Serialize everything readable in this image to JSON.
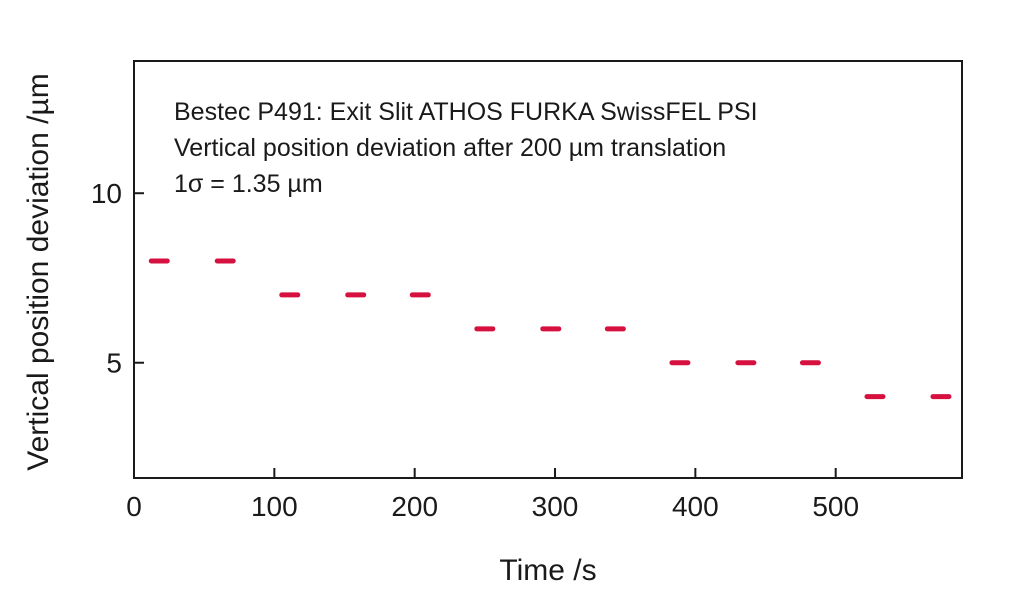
{
  "chart_data": {
    "type": "scatter",
    "title": "",
    "xlabel": "Time /s",
    "ylabel": "Vertical position deviation /µm",
    "xlim": [
      0,
      590
    ],
    "ylim": [
      1.6,
      13.9
    ],
    "xticks": [
      0,
      100,
      200,
      300,
      400,
      500
    ],
    "yticks": [
      5,
      10
    ],
    "grid": false,
    "marker_color": "#d6103f",
    "annotations": [
      "Bestec P491: Exit Slit ATHOS FURKA SwissFEL PSI",
      "Vertical position deviation after 200 µm translation",
      "1σ = 1.35 µm"
    ],
    "points": [
      {
        "x": 18,
        "y": 8
      },
      {
        "x": 65,
        "y": 8
      },
      {
        "x": 111,
        "y": 7
      },
      {
        "x": 158,
        "y": 7
      },
      {
        "x": 204,
        "y": 7
      },
      {
        "x": 250,
        "y": 6
      },
      {
        "x": 297,
        "y": 6
      },
      {
        "x": 343,
        "y": 6
      },
      {
        "x": 389,
        "y": 5
      },
      {
        "x": 436,
        "y": 5
      },
      {
        "x": 482,
        "y": 5
      },
      {
        "x": 528,
        "y": 4
      },
      {
        "x": 575,
        "y": 4
      }
    ]
  }
}
